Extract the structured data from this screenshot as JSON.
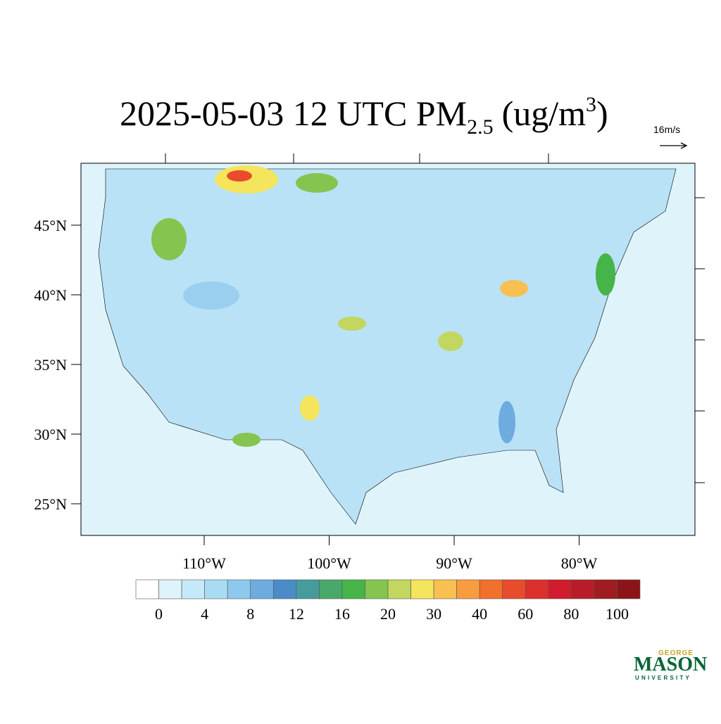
{
  "map": {
    "title": {
      "main": "2025-05-03 12 UTC PM",
      "sub": "2.5",
      "unit": "(ug/m",
      "sup": "3",
      "close": ")"
    },
    "wind_scale_label": "16m/s",
    "lat_labels": [
      "45°N",
      "40°N",
      "35°N",
      "30°N",
      "25°N"
    ],
    "lon_labels": [
      "110°W",
      "100°W",
      "90°W",
      "80°W"
    ],
    "colorbar": {
      "colors": [
        "#ffffff",
        "#dff3fb",
        "#c5e9f8",
        "#a8dcf3",
        "#8ec8ec",
        "#6eacdf",
        "#4a8cc8",
        "#469c9c",
        "#4aa86a",
        "#46b448",
        "#86c450",
        "#c2d660",
        "#f5e55c",
        "#f8c050",
        "#f89c40",
        "#f0702c",
        "#e84c2c",
        "#dc302c",
        "#d01c2c",
        "#b81c28",
        "#a01c20",
        "#8c1418"
      ],
      "labels": [
        0,
        4,
        8,
        12,
        16,
        20,
        30,
        40,
        60,
        80,
        100
      ]
    },
    "logo": {
      "top": "GEORGE",
      "name": "MASON",
      "bottom": "UNIVERSITY"
    }
  }
}
